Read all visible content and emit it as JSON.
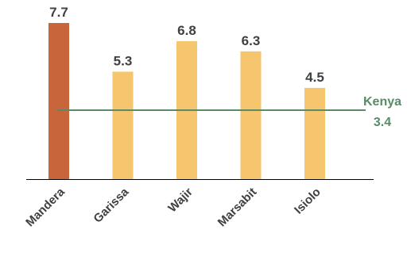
{
  "chart_data": {
    "type": "bar",
    "categories": [
      "Mandera",
      "Garissa",
      "Wajir",
      "Marsabit",
      "Isiolo"
    ],
    "values": [
      7.7,
      5.3,
      6.8,
      6.3,
      4.5
    ],
    "value_labels": [
      "7.7",
      "5.3",
      "6.8",
      "6.3",
      "4.5"
    ],
    "highlight_index": 0,
    "ylim": [
      0,
      7.7
    ],
    "grid": false,
    "reference_line": {
      "label": "Kenya",
      "value": 3.4,
      "value_label": "3.4"
    },
    "colors": {
      "highlight": "#c9653a",
      "bar": "#f6c66e",
      "reference": "#5b8a68",
      "axis": "#000000",
      "text": "#404040"
    }
  }
}
